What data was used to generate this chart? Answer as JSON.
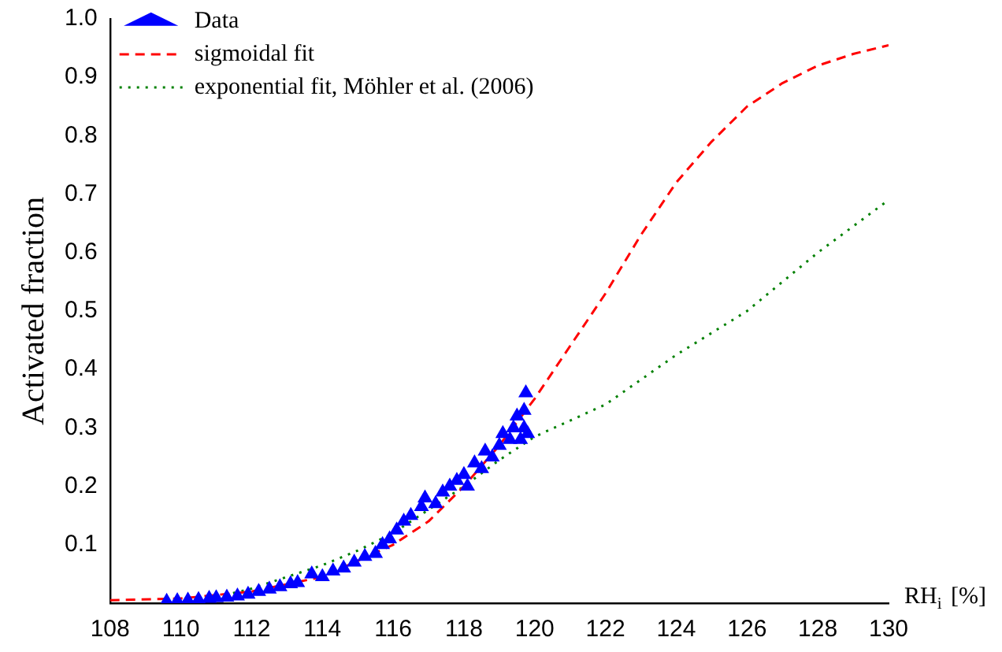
{
  "chart_data": {
    "type": "scatter",
    "xlabel": "RH$_{i}$ [%]",
    "ylabel": "Activated fraction",
    "xlim": [
      108,
      130
    ],
    "xticks": [
      108,
      110,
      112,
      114,
      116,
      118,
      120,
      122,
      124,
      126,
      128,
      130
    ],
    "ylim": [
      0,
      1
    ],
    "yticks": [
      0.1,
      0.2,
      0.3,
      0.4,
      0.5,
      0.6,
      0.7,
      0.8,
      0.9,
      {
        "value": 1,
        "label": "1.0"
      }
    ],
    "grid": false,
    "legend": "top left",
    "series": [
      {
        "name": "Data",
        "color": "#0000ff",
        "marker": "triangle",
        "x": [
          109.6,
          109.9,
          110.2,
          110.5,
          110.8,
          111.0,
          111.3,
          111.6,
          111.9,
          112.2,
          112.5,
          112.8,
          113.1,
          113.3,
          113.7,
          114.0,
          114.3,
          114.6,
          114.9,
          115.2,
          115.5,
          115.7,
          115.9,
          116.1,
          116.3,
          116.5,
          116.8,
          116.9,
          117.2,
          117.4,
          117.6,
          117.8,
          118.0,
          118.1,
          118.3,
          118.5,
          118.6,
          118.8,
          119.0,
          119.1,
          119.3,
          119.4,
          119.5,
          119.6,
          119.7,
          119.75,
          119.8,
          119.7
        ],
        "values": [
          0.003,
          0.004,
          0.005,
          0.006,
          0.008,
          0.009,
          0.01,
          0.012,
          0.015,
          0.02,
          0.024,
          0.028,
          0.033,
          0.035,
          0.05,
          0.045,
          0.055,
          0.06,
          0.07,
          0.08,
          0.085,
          0.1,
          0.11,
          0.125,
          0.14,
          0.15,
          0.165,
          0.18,
          0.17,
          0.19,
          0.2,
          0.21,
          0.22,
          0.2,
          0.24,
          0.23,
          0.26,
          0.25,
          0.27,
          0.29,
          0.28,
          0.3,
          0.32,
          0.28,
          0.33,
          0.36,
          0.29,
          0.3
        ]
      },
      {
        "name": "sigmoidal fit",
        "type": "line",
        "color": "#ff0000",
        "marker": "none",
        "line_style": "dashed",
        "x": [
          108,
          110,
          112,
          114,
          116,
          117,
          118,
          119,
          120,
          121,
          122,
          123,
          124,
          125,
          126,
          127,
          128,
          129,
          130
        ],
        "values": [
          0.005,
          0.008,
          0.02,
          0.045,
          0.1,
          0.14,
          0.2,
          0.27,
          0.35,
          0.44,
          0.53,
          0.63,
          0.72,
          0.79,
          0.85,
          0.89,
          0.92,
          0.94,
          0.955
        ]
      },
      {
        "name": "exponential fit, Möhler et al. (2006)",
        "type": "line",
        "color": "#008000",
        "marker": "none",
        "line_style": "dotted",
        "x": [
          111,
          112,
          113,
          114,
          115,
          116,
          117,
          118,
          119,
          120,
          122,
          124,
          126,
          128,
          130
        ],
        "values": [
          0.01,
          0.025,
          0.045,
          0.065,
          0.09,
          0.12,
          0.16,
          0.2,
          0.245,
          0.285,
          0.34,
          0.425,
          0.5,
          0.6,
          0.69
        ]
      }
    ]
  }
}
